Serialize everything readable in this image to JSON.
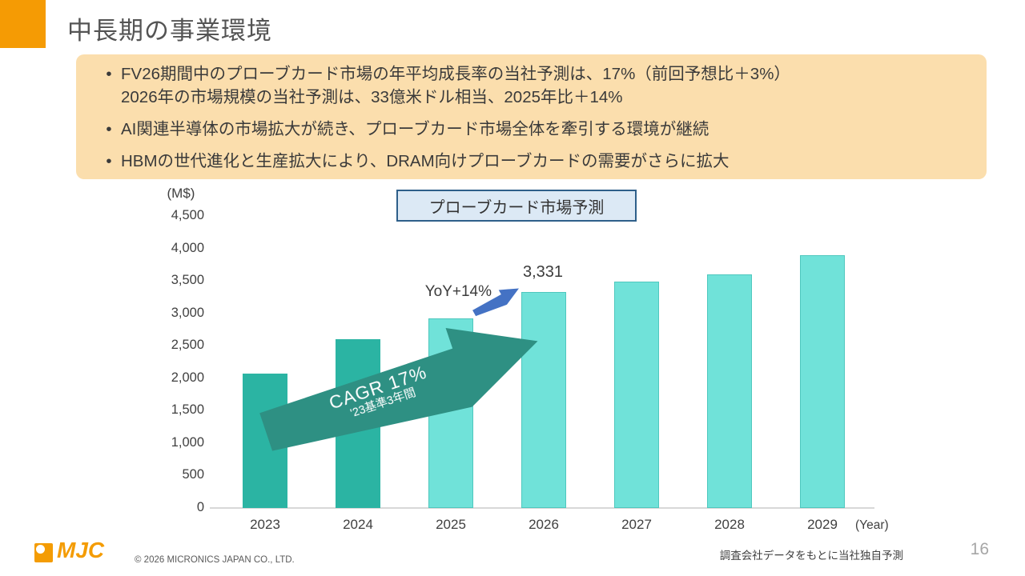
{
  "slide": {
    "title": "中長期の事業環境",
    "page_number": "16",
    "footer_copyright": "© 2026 MICRONICS JAPAN CO., LTD.",
    "footer_note": "調査会社データをもとに当社独自予測",
    "logo_text": "MJC"
  },
  "summary_box": {
    "lines": [
      {
        "marker": "•",
        "text": "FV26期間中のプローブカード市場の年平均成長率の当社予測は、17%（前回予想比＋3%）"
      },
      {
        "marker": "",
        "text": "2026年の市場規模の当社予測は、33億米ドル相当、2025年比＋14%"
      },
      {
        "marker": "•",
        "text": "AI関連半導体の市場拡大が続き、プローブカード市場全体を牽引する環境が継続"
      },
      {
        "marker": "•",
        "text": "HBMの世代進化と生産拡大により、DRAM向けプローブカードの需要がさらに拡大"
      }
    ]
  },
  "chart": {
    "title": "プローブカード市場予測",
    "unit_label": "(M$)",
    "year_label": "(Year)",
    "yoy_label": "YoY+14%",
    "value_label_2026": "3,331",
    "cagr_line1": "CAGR 17%",
    "cagr_line2": "'23基準3年間"
  },
  "chart_data": {
    "type": "bar",
    "title": "プローブカード市場予測",
    "categories": [
      "2023",
      "2024",
      "2025",
      "2026",
      "2027",
      "2028",
      "2029"
    ],
    "values": [
      2070,
      2600,
      2920,
      3331,
      3490,
      3600,
      3890
    ],
    "labeled_values": {
      "2026": "3,331"
    },
    "actual_count": 2,
    "xlabel": "(Year)",
    "ylabel": "(M$)",
    "ylim": [
      0,
      4500
    ],
    "ytick_step": 500,
    "ytick_labels": [
      "0",
      "500",
      "1,000",
      "1,500",
      "2,000",
      "2,500",
      "3,000",
      "3,500",
      "4,000",
      "4,500"
    ],
    "grid": false,
    "annotations": [
      "YoY+14%",
      "CAGR 17%",
      "'23基準3年間"
    ],
    "colors": {
      "actual_bar": "#2BB4A3",
      "forecast_bar": "#70E2D9",
      "cagr_arrow": "#2E9083",
      "yoy_arrow": "#4472C4"
    }
  }
}
